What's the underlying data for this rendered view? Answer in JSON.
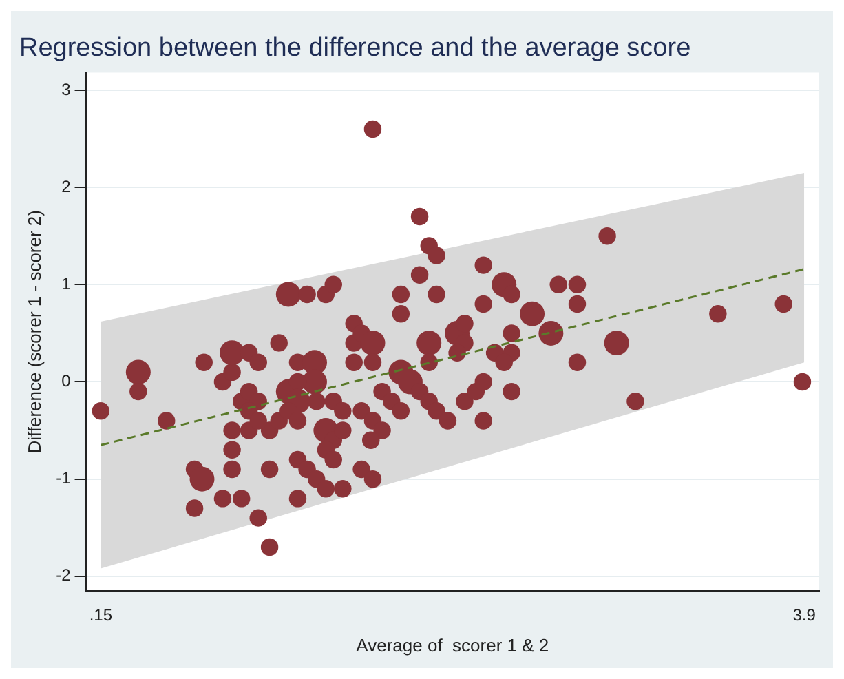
{
  "chart_data": {
    "type": "bubble",
    "title": "Regression between the difference and the average score",
    "xlabel": "Average of  scorer 1 & 2",
    "ylabel": "Difference (scorer 1 - scorer 2)",
    "xlim": [
      0.07,
      3.98
    ],
    "ylim": [
      -2.15,
      3.18
    ],
    "xticks": [
      {
        "value": 0.15,
        "label": ".15"
      },
      3.9
    ],
    "yticks": [
      -2,
      -1,
      0,
      1,
      2,
      3
    ],
    "grid": "y",
    "legend": false,
    "series": [
      {
        "marker": "circle",
        "color": "#8b3338",
        "x": [
          0.15,
          0.35,
          0.35,
          0.5,
          0.65,
          0.69,
          0.65,
          0.7,
          0.8,
          0.85,
          0.85,
          0.94,
          0.99,
          1.1,
          1.15,
          1.25,
          1.35,
          1.39,
          0.85,
          0.85,
          0.85,
          0.8,
          0.9,
          0.99,
          1.05,
          1.05,
          0.9,
          0.94,
          0.99,
          0.94,
          0.94,
          1.05,
          0.99,
          1.1,
          1.15,
          1.2,
          1.29,
          1.29,
          1.2,
          1.2,
          1.15,
          1.2,
          1.3,
          1.39,
          1.44,
          1.35,
          1.39,
          1.35,
          1.39,
          1.2,
          1.25,
          1.3,
          1.35,
          1.2,
          1.44,
          1.44,
          1.6,
          1.85,
          1.9,
          1.94,
          1.85,
          1.75,
          1.75,
          1.94,
          2.19,
          2.3,
          2.19,
          2.34,
          2.59,
          2.69,
          2.69,
          2.45,
          2.55,
          2.34,
          2.34,
          2.25,
          2.3,
          2.69,
          2.05,
          2.09,
          2.09,
          2.05,
          1.9,
          1.5,
          1.5,
          1.54,
          1.6,
          1.5,
          1.6,
          1.75,
          1.9,
          1.8,
          1.65,
          1.7,
          1.75,
          1.85,
          1.9,
          1.94,
          2.0,
          2.09,
          2.15,
          2.19,
          2.34,
          2.19,
          1.54,
          1.6,
          1.65,
          1.59,
          1.54,
          1.6,
          2.85,
          2.9,
          3.0,
          3.44,
          3.79,
          3.89
        ],
        "values": [
          -0.3,
          0.1,
          -0.1,
          -0.4,
          -0.9,
          -1.0,
          -1.3,
          0.2,
          0.0,
          0.1,
          0.3,
          0.3,
          0.2,
          0.4,
          0.9,
          0.9,
          0.9,
          1.0,
          -0.5,
          -0.7,
          -0.9,
          -1.2,
          -1.2,
          -1.4,
          -1.7,
          -0.9,
          -0.2,
          -0.1,
          -0.2,
          -0.3,
          -0.5,
          -0.5,
          -0.4,
          -0.4,
          -0.1,
          0.2,
          0.2,
          0.0,
          0.0,
          -0.2,
          -0.3,
          -0.4,
          -0.2,
          -0.2,
          -0.3,
          -0.5,
          -0.6,
          -0.7,
          -0.8,
          -0.8,
          -0.9,
          -1.0,
          -1.1,
          -1.2,
          -1.1,
          -0.5,
          2.6,
          1.7,
          1.4,
          1.3,
          1.1,
          0.9,
          0.7,
          0.9,
          1.2,
          1.0,
          0.8,
          0.9,
          1.0,
          1.0,
          0.8,
          0.7,
          0.5,
          0.5,
          0.3,
          0.3,
          0.2,
          0.2,
          0.5,
          0.6,
          0.4,
          0.3,
          0.4,
          0.6,
          0.4,
          0.5,
          0.4,
          0.2,
          0.2,
          0.1,
          0.2,
          0.0,
          -0.1,
          -0.2,
          -0.3,
          -0.1,
          -0.2,
          -0.3,
          -0.4,
          -0.2,
          -0.1,
          0.0,
          -0.1,
          -0.4,
          -0.3,
          -0.4,
          -0.5,
          -0.6,
          -0.9,
          -1.0,
          1.5,
          0.4,
          -0.2,
          0.7,
          0.8,
          0.0
        ],
        "sizes": [
          0.5,
          1,
          0.5,
          0.5,
          0.5,
          1,
          0.5,
          0.5,
          0.5,
          0.5,
          1,
          0.5,
          0.5,
          0.5,
          1,
          0.5,
          0.5,
          0.5,
          0.5,
          0.5,
          0.5,
          0.5,
          0.5,
          0.5,
          0.5,
          0.5,
          0.5,
          0.5,
          0.5,
          0.5,
          0.5,
          0.5,
          0.5,
          0.5,
          1,
          0.5,
          1,
          1,
          0.5,
          1,
          0.5,
          0.5,
          0.5,
          0.5,
          0.5,
          1,
          0.5,
          0.5,
          0.5,
          0.5,
          0.5,
          0.5,
          0.5,
          0.5,
          0.5,
          0.5,
          0.5,
          0.5,
          0.5,
          0.5,
          0.5,
          0.5,
          0.5,
          0.5,
          0.5,
          1,
          0.5,
          0.5,
          0.5,
          0.5,
          0.5,
          1,
          1,
          0.5,
          0.5,
          0.5,
          0.5,
          0.5,
          1,
          0.5,
          0.5,
          0.5,
          1,
          0.5,
          0.5,
          0.5,
          1,
          0.5,
          0.5,
          1,
          0.5,
          1,
          0.5,
          0.5,
          0.5,
          0.5,
          0.5,
          0.5,
          0.5,
          0.5,
          0.5,
          0.5,
          0.5,
          0.5,
          0.5,
          0.5,
          0.5,
          0.5,
          0.5,
          0.5,
          0.5,
          1,
          0.5,
          0.5,
          0.5,
          0.5
        ]
      },
      {
        "type": "line",
        "color": "#5a7a2a",
        "line_style": "dashed",
        "x": [
          0.15,
          3.9
        ],
        "values": [
          -0.65,
          1.16
        ],
        "lower": [
          -1.92,
          0.2
        ],
        "upper": [
          0.62,
          2.15
        ]
      }
    ]
  }
}
